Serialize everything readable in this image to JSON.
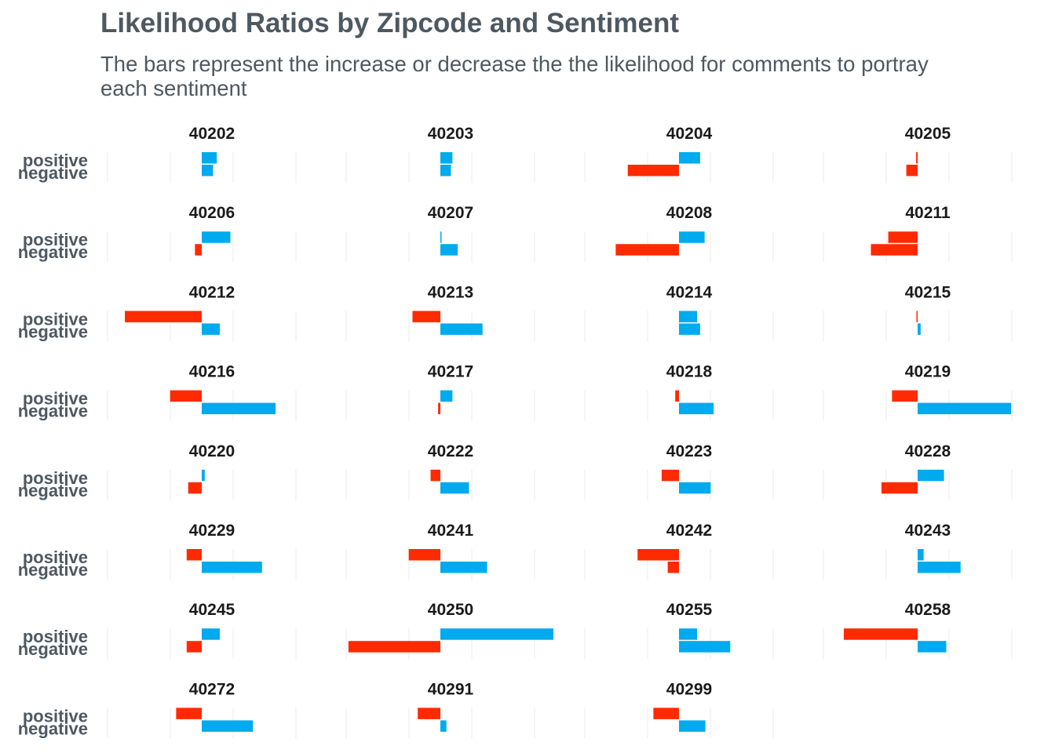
{
  "chart_data": {
    "type": "bar",
    "title": "Likelihood Ratios by Zipcode and Sentiment",
    "subtitle": "The bars represent the increase or decrease the the likelihood for comments to portray each sentiment",
    "categories": [
      "positive",
      "negative"
    ],
    "colors": {
      "increase": "#00aaee",
      "decrease": "#ff2a00",
      "grid": "#ebebeb"
    },
    "grid": true,
    "facets": [
      {
        "zipcode": "40202",
        "positive": 0.1,
        "negative": 0.075
      },
      {
        "zipcode": "40203",
        "positive": 0.08,
        "negative": 0.07
      },
      {
        "zipcode": "40204",
        "positive": 0.14,
        "negative": -0.34
      },
      {
        "zipcode": "40205",
        "positive": -0.01,
        "negative": -0.075
      },
      {
        "zipcode": "40206",
        "positive": 0.19,
        "negative": -0.045
      },
      {
        "zipcode": "40207",
        "positive": 0.005,
        "negative": 0.115
      },
      {
        "zipcode": "40208",
        "positive": 0.17,
        "negative": -0.42
      },
      {
        "zipcode": "40211",
        "positive": -0.195,
        "negative": -0.31
      },
      {
        "zipcode": "40212",
        "positive": -0.51,
        "negative": 0.12
      },
      {
        "zipcode": "40213",
        "positive": -0.185,
        "negative": 0.28
      },
      {
        "zipcode": "40214",
        "positive": 0.12,
        "negative": 0.14
      },
      {
        "zipcode": "40215",
        "positive": -0.005,
        "negative": 0.02
      },
      {
        "zipcode": "40216",
        "positive": -0.21,
        "negative": 0.49
      },
      {
        "zipcode": "40217",
        "positive": 0.08,
        "negative": -0.015
      },
      {
        "zipcode": "40218",
        "positive": -0.025,
        "negative": 0.23
      },
      {
        "zipcode": "40219",
        "positive": -0.17,
        "negative": 0.62
      },
      {
        "zipcode": "40220",
        "positive": 0.02,
        "negative": -0.09
      },
      {
        "zipcode": "40222",
        "positive": -0.065,
        "negative": 0.19
      },
      {
        "zipcode": "40223",
        "positive": -0.115,
        "negative": 0.21
      },
      {
        "zipcode": "40228",
        "positive": 0.175,
        "negative": -0.24
      },
      {
        "zipcode": "40229",
        "positive": -0.1,
        "negative": 0.4
      },
      {
        "zipcode": "40241",
        "positive": -0.21,
        "negative": 0.31
      },
      {
        "zipcode": "40242",
        "positive": -0.275,
        "negative": -0.075
      },
      {
        "zipcode": "40243",
        "positive": 0.04,
        "negative": 0.285
      },
      {
        "zipcode": "40245",
        "positive": 0.12,
        "negative": -0.1
      },
      {
        "zipcode": "40250",
        "positive": 0.75,
        "negative": -0.61
      },
      {
        "zipcode": "40255",
        "positive": 0.12,
        "negative": 0.34
      },
      {
        "zipcode": "40258",
        "positive": -0.49,
        "negative": 0.19
      },
      {
        "zipcode": "40272",
        "positive": -0.17,
        "negative": 0.34
      },
      {
        "zipcode": "40291",
        "positive": -0.15,
        "negative": 0.04
      },
      {
        "zipcode": "40299",
        "positive": -0.17,
        "negative": 0.175
      }
    ]
  }
}
